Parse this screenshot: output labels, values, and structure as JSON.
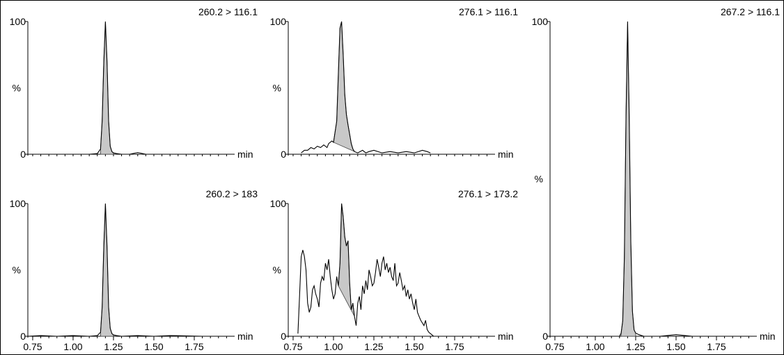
{
  "chart_data": [
    {
      "type": "line",
      "title": "260.2 > 116.1",
      "xlabel": "min",
      "ylabel": "%",
      "xlim": [
        0.72,
        2.0
      ],
      "ylim": [
        0,
        100
      ],
      "xticklabels": [],
      "yticklabels": [
        "0",
        "100"
      ],
      "series": [
        {
          "fill": "peak",
          "peak_region": [
            1.17,
            1.25
          ],
          "x": [
            0.72,
            0.8,
            0.9,
            1.0,
            1.1,
            1.15,
            1.17,
            1.18,
            1.19,
            1.2,
            1.21,
            1.22,
            1.23,
            1.24,
            1.25,
            1.27,
            1.3,
            1.35,
            1.38,
            1.4,
            1.42,
            1.45,
            1.5,
            1.6,
            1.8,
            2.0
          ],
          "y": [
            0,
            0,
            0,
            0,
            0,
            0.5,
            4,
            25,
            70,
            100,
            70,
            25,
            6,
            2,
            1,
            0.5,
            0,
            0,
            0.8,
            1.2,
            0.8,
            0,
            0,
            0,
            0,
            0
          ]
        }
      ]
    },
    {
      "type": "line",
      "title": "276.1 > 116.1",
      "xlabel": "min",
      "ylabel": "%",
      "xlim": [
        0.72,
        2.0
      ],
      "ylim": [
        0,
        100
      ],
      "xticklabels": [],
      "yticklabels": [
        "0",
        "100"
      ],
      "series": [
        {
          "fill": "baseline",
          "peak_region": [
            1.0,
            1.13
          ],
          "x": [
            0.8,
            0.82,
            0.84,
            0.86,
            0.88,
            0.9,
            0.92,
            0.94,
            0.96,
            0.97,
            0.99,
            1.0,
            1.02,
            1.03,
            1.04,
            1.05,
            1.06,
            1.07,
            1.08,
            1.09,
            1.1,
            1.11,
            1.12,
            1.13,
            1.15,
            1.18,
            1.2,
            1.22,
            1.25,
            1.3,
            1.35,
            1.4,
            1.45,
            1.5,
            1.55,
            1.58,
            1.6
          ],
          "y": [
            1,
            3,
            3,
            5,
            4,
            6,
            5,
            7,
            5,
            8,
            10,
            9,
            25,
            60,
            95,
            100,
            75,
            45,
            30,
            22,
            15,
            8,
            4,
            2,
            1,
            3,
            1,
            2,
            3,
            1,
            2,
            1,
            2,
            1,
            3,
            2,
            1
          ]
        }
      ]
    },
    {
      "type": "line",
      "title": "260.2 > 183",
      "xlabel": "min",
      "ylabel": "%",
      "xlim": [
        0.72,
        2.0
      ],
      "ylim": [
        0,
        100
      ],
      "xticks": [
        0.75,
        1.0,
        1.25,
        1.5,
        1.75
      ],
      "xticklabels": [
        "0.75",
        "1.00",
        "1.25",
        "1.50",
        "1.75"
      ],
      "yticklabels": [
        "0",
        "100"
      ],
      "series": [
        {
          "fill": "peak",
          "peak_region": [
            1.17,
            1.25
          ],
          "x": [
            0.72,
            0.8,
            0.9,
            1.0,
            1.1,
            1.15,
            1.17,
            1.18,
            1.19,
            1.2,
            1.21,
            1.22,
            1.23,
            1.24,
            1.25,
            1.27,
            1.3,
            1.4,
            1.5,
            1.6,
            1.8,
            2.0
          ],
          "y": [
            0,
            0.5,
            0,
            0.5,
            0,
            0.5,
            3,
            22,
            68,
            100,
            68,
            22,
            6,
            2,
            1,
            0.5,
            0,
            0.5,
            0,
            0.5,
            0,
            0
          ]
        }
      ]
    },
    {
      "type": "line",
      "title": "276.1 > 173.2",
      "xlabel": "min",
      "ylabel": "%",
      "xlim": [
        0.72,
        2.0
      ],
      "ylim": [
        0,
        100
      ],
      "xticks": [
        0.75,
        1.0,
        1.25,
        1.5,
        1.75
      ],
      "xticklabels": [
        "0.75",
        "1.00",
        "1.25",
        "1.50",
        "1.75"
      ],
      "yticklabels": [
        "0",
        "100"
      ],
      "series": [
        {
          "fill": "baseline",
          "peak_region": [
            1.03,
            1.13
          ],
          "x": [
            0.78,
            0.79,
            0.8,
            0.81,
            0.82,
            0.83,
            0.84,
            0.85,
            0.86,
            0.87,
            0.88,
            0.89,
            0.9,
            0.91,
            0.92,
            0.93,
            0.94,
            0.95,
            0.96,
            0.97,
            0.98,
            0.99,
            1.0,
            1.01,
            1.02,
            1.03,
            1.04,
            1.05,
            1.06,
            1.07,
            1.08,
            1.09,
            1.1,
            1.11,
            1.12,
            1.13,
            1.14,
            1.15,
            1.16,
            1.17,
            1.18,
            1.19,
            1.2,
            1.21,
            1.22,
            1.23,
            1.24,
            1.25,
            1.26,
            1.27,
            1.28,
            1.29,
            1.3,
            1.31,
            1.32,
            1.33,
            1.34,
            1.35,
            1.36,
            1.37,
            1.38,
            1.39,
            1.4,
            1.41,
            1.42,
            1.43,
            1.44,
            1.45,
            1.46,
            1.47,
            1.48,
            1.49,
            1.5,
            1.51,
            1.52,
            1.53,
            1.54,
            1.55,
            1.56,
            1.57,
            1.58,
            1.59,
            1.6,
            1.61,
            1.62
          ],
          "y": [
            2,
            30,
            60,
            65,
            60,
            50,
            25,
            18,
            22,
            35,
            38,
            32,
            28,
            22,
            40,
            45,
            42,
            55,
            50,
            58,
            45,
            35,
            28,
            32,
            45,
            38,
            55,
            100,
            90,
            75,
            68,
            72,
            40,
            20,
            25,
            15,
            8,
            25,
            30,
            20,
            38,
            32,
            42,
            35,
            50,
            45,
            38,
            40,
            48,
            58,
            52,
            45,
            55,
            60,
            50,
            55,
            48,
            52,
            45,
            42,
            55,
            38,
            40,
            48,
            42,
            35,
            38,
            30,
            35,
            28,
            32,
            25,
            20,
            28,
            18,
            15,
            12,
            10,
            8,
            12,
            5,
            3,
            2,
            1,
            0
          ]
        }
      ]
    },
    {
      "type": "line",
      "title": "267.2 > 116.1",
      "xlabel": "min",
      "ylabel": "%",
      "xlim": [
        0.72,
        2.0
      ],
      "ylim": [
        0,
        100
      ],
      "xticks": [
        0.75,
        1.0,
        1.25,
        1.5,
        1.75
      ],
      "xticklabels": [
        "0.75",
        "1.00",
        "1.25",
        "1.50",
        "1.75"
      ],
      "yticklabels": [
        "0",
        "100"
      ],
      "series": [
        {
          "fill": "peak",
          "peak_region": [
            1.16,
            1.25
          ],
          "x": [
            0.72,
            0.9,
            1.0,
            1.1,
            1.15,
            1.16,
            1.17,
            1.18,
            1.19,
            1.2,
            1.21,
            1.22,
            1.23,
            1.24,
            1.25,
            1.27,
            1.3,
            1.4,
            1.5,
            1.6,
            1.8,
            2.0
          ],
          "y": [
            0,
            0,
            0,
            0,
            0,
            1,
            5,
            25,
            70,
            100,
            70,
            30,
            8,
            2,
            1,
            0.5,
            0,
            0,
            0.5,
            0,
            0,
            0
          ]
        }
      ]
    }
  ]
}
